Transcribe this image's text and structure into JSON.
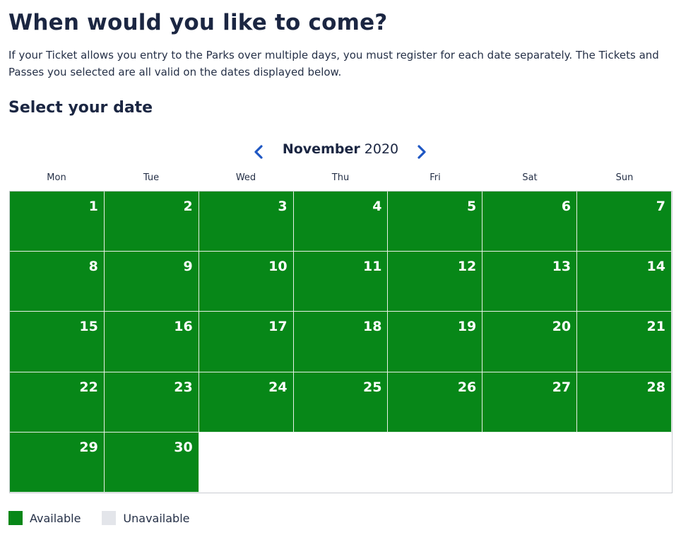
{
  "page": {
    "title": "When would you like to come?",
    "intro": "If your Ticket allows you entry to the Parks over multiple days, you must register for each date separately. The Tickets and Passes you selected are all valid on the dates displayed below.",
    "subtitle": "Select your date"
  },
  "calendar": {
    "month": "November",
    "year": "2020",
    "prev_icon": "chevron-left-icon",
    "next_icon": "chevron-right-icon",
    "weekdays": [
      "Mon",
      "Tue",
      "Wed",
      "Thu",
      "Fri",
      "Sat",
      "Sun"
    ],
    "days": [
      {
        "day": "1",
        "status": "available"
      },
      {
        "day": "2",
        "status": "available"
      },
      {
        "day": "3",
        "status": "available"
      },
      {
        "day": "4",
        "status": "available"
      },
      {
        "day": "5",
        "status": "available"
      },
      {
        "day": "6",
        "status": "available"
      },
      {
        "day": "7",
        "status": "available"
      },
      {
        "day": "8",
        "status": "available"
      },
      {
        "day": "9",
        "status": "available"
      },
      {
        "day": "10",
        "status": "available"
      },
      {
        "day": "11",
        "status": "available"
      },
      {
        "day": "12",
        "status": "available"
      },
      {
        "day": "13",
        "status": "available"
      },
      {
        "day": "14",
        "status": "available"
      },
      {
        "day": "15",
        "status": "available"
      },
      {
        "day": "16",
        "status": "available"
      },
      {
        "day": "17",
        "status": "available"
      },
      {
        "day": "18",
        "status": "available"
      },
      {
        "day": "19",
        "status": "available"
      },
      {
        "day": "20",
        "status": "available"
      },
      {
        "day": "21",
        "status": "available"
      },
      {
        "day": "22",
        "status": "available"
      },
      {
        "day": "23",
        "status": "available"
      },
      {
        "day": "24",
        "status": "available"
      },
      {
        "day": "25",
        "status": "available"
      },
      {
        "day": "26",
        "status": "available"
      },
      {
        "day": "27",
        "status": "available"
      },
      {
        "day": "28",
        "status": "available"
      },
      {
        "day": "29",
        "status": "available"
      },
      {
        "day": "30",
        "status": "available"
      }
    ]
  },
  "legend": {
    "available_label": "Available",
    "unavailable_label": "Unavailable",
    "available_color": "#078718",
    "unavailable_color": "#e3e5ea"
  }
}
